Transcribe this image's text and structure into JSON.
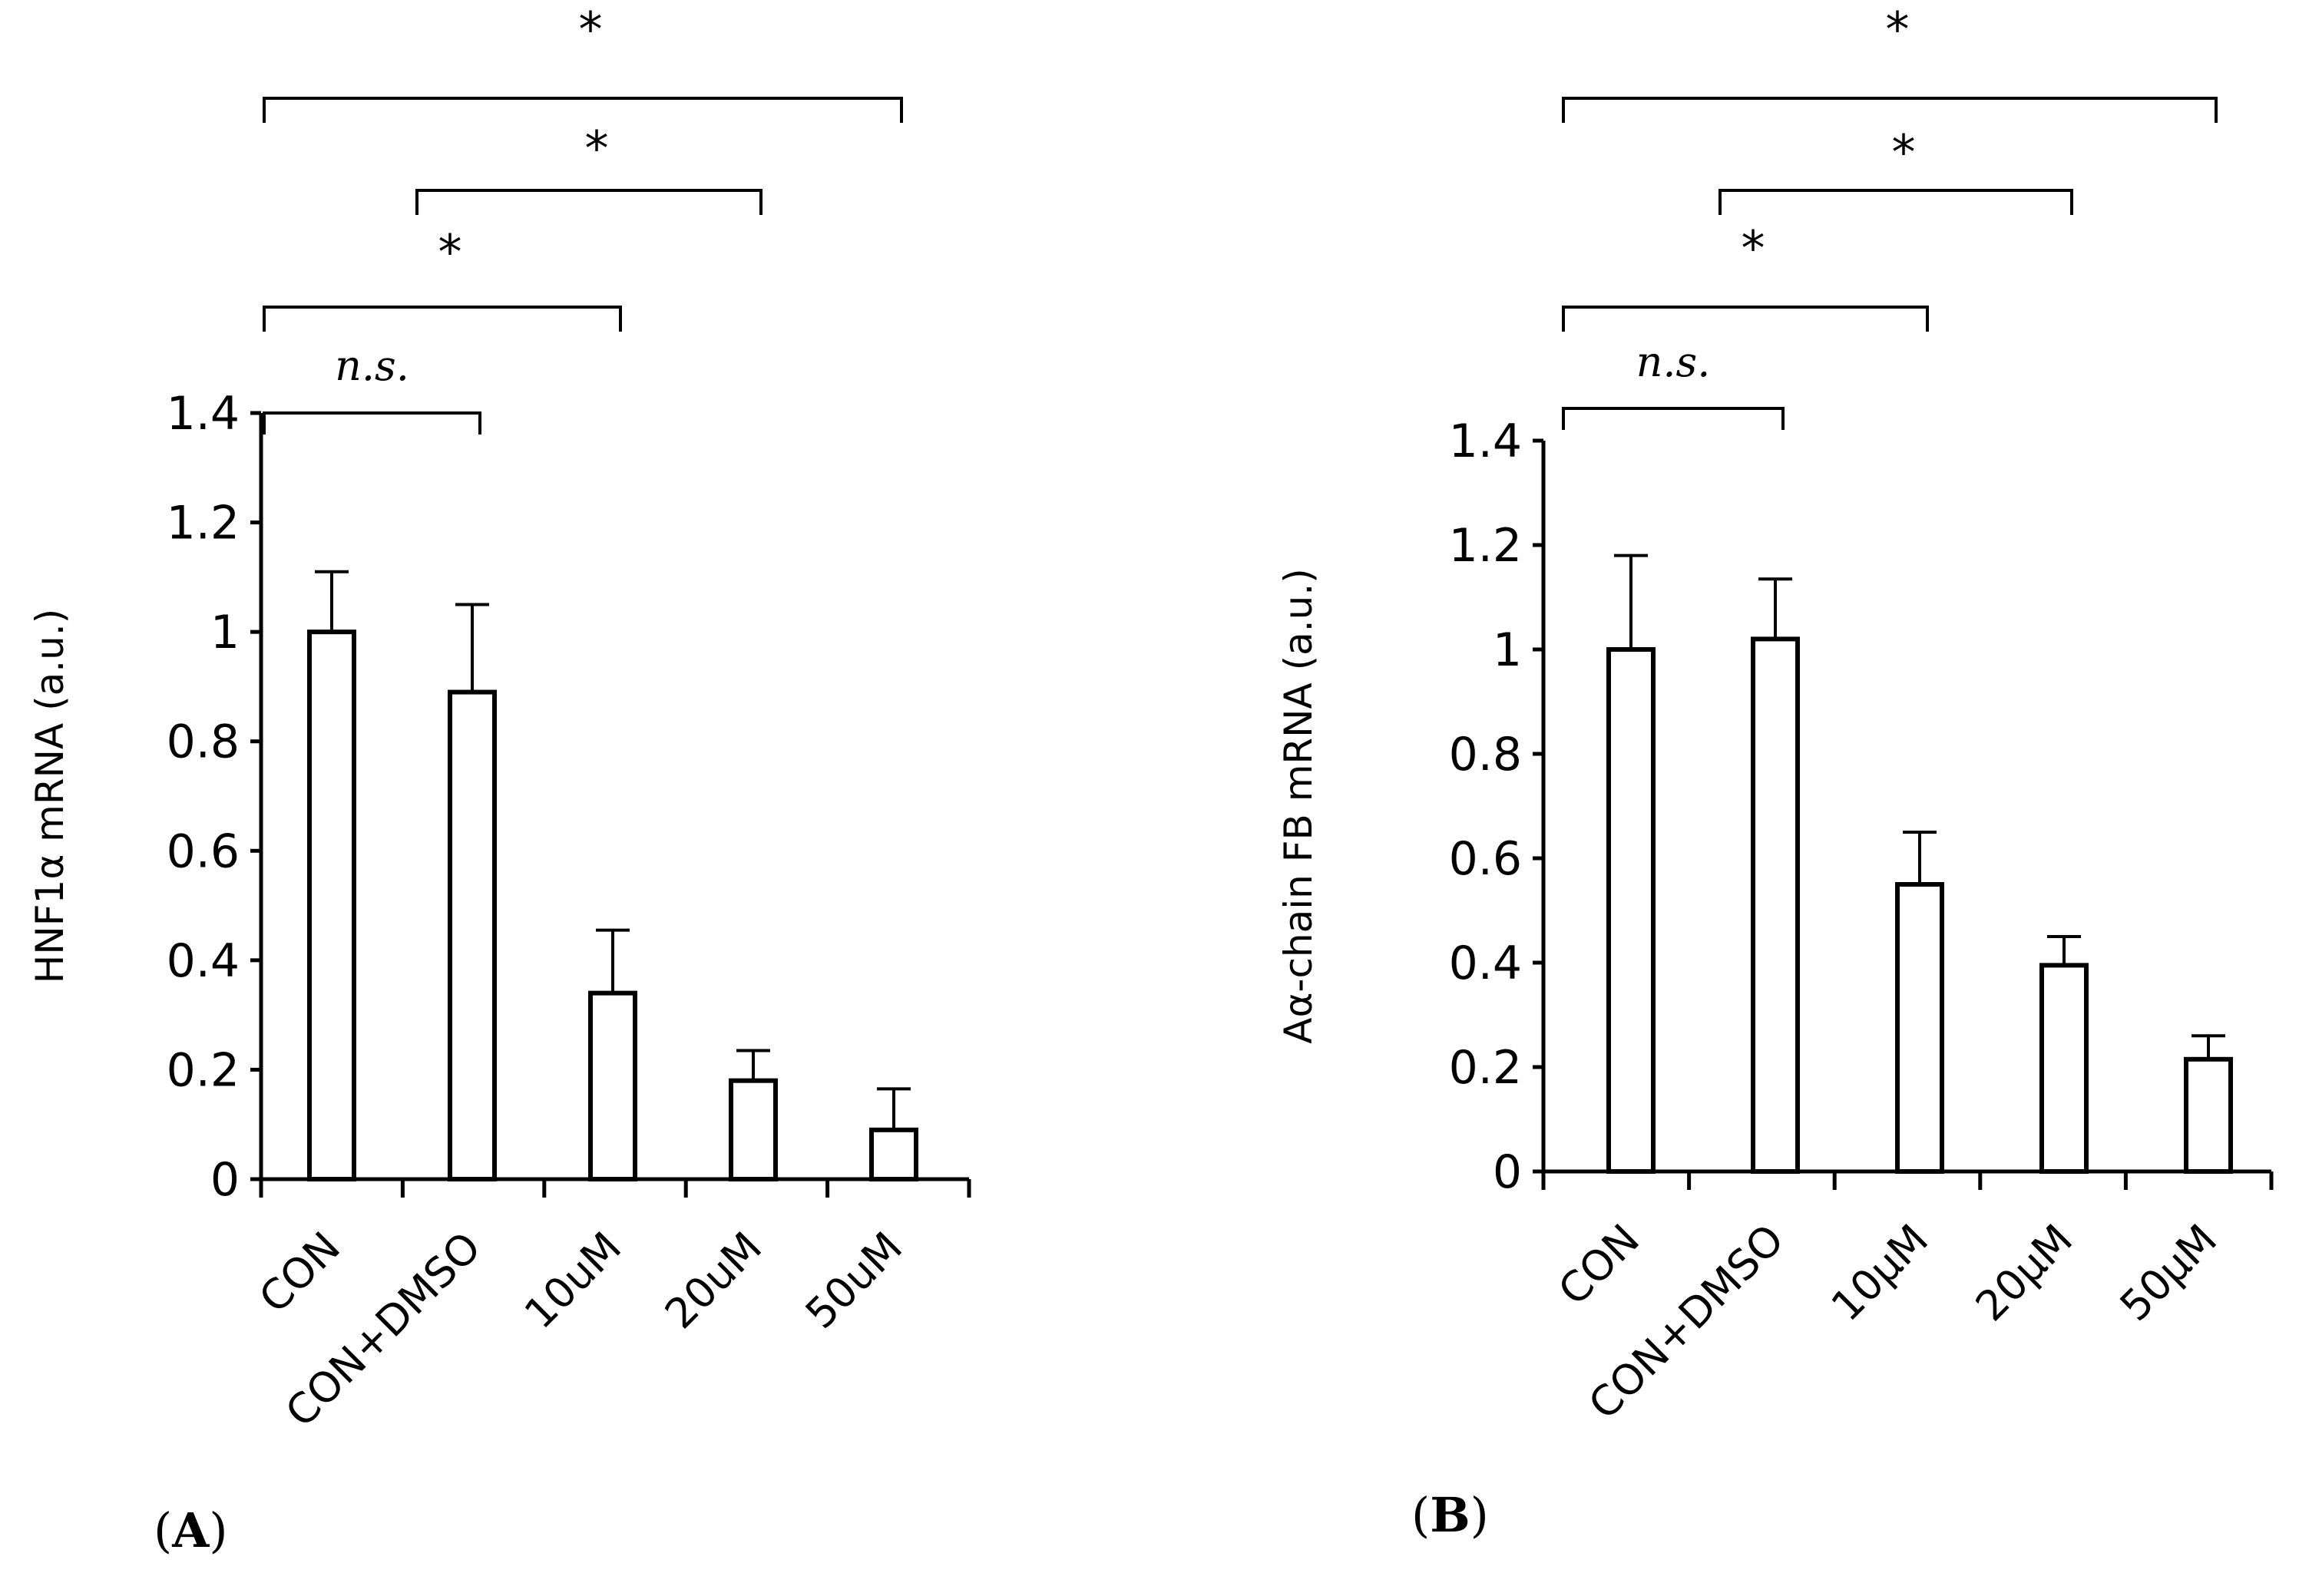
{
  "chart_data": [
    {
      "type": "bar",
      "panel_label": "A",
      "ylabel": "HNF1α mRNA (a.u.)",
      "xlabel": "",
      "categories": [
        "CON",
        "CON+DMSO",
        "10uM",
        "20uM",
        "50uM"
      ],
      "values": [
        1.0,
        0.89,
        0.34,
        0.18,
        0.09
      ],
      "errors": [
        0.11,
        0.16,
        0.115,
        0.055,
        0.075
      ],
      "ylim": [
        0,
        1.4
      ],
      "yticks": [
        "0",
        "0.2",
        "0.4",
        "0.6",
        "0.8",
        "1",
        "1.2",
        "1.4"
      ],
      "grid": false,
      "comparisons": [
        {
          "from": "CON",
          "to": "CON+DMSO",
          "label": "n.s."
        },
        {
          "from": "CON",
          "to": "10uM",
          "label": "*"
        },
        {
          "from": "CON+DMSO",
          "to": "20uM",
          "label": "*"
        },
        {
          "from": "CON",
          "to": "50uM",
          "label": "*"
        }
      ]
    },
    {
      "type": "bar",
      "panel_label": "B",
      "ylabel": "Aα-chain FB mRNA (a.u.)",
      "xlabel": "",
      "categories": [
        "CON",
        "CON+DMSO",
        "10μM",
        "20μM",
        "50μM"
      ],
      "values": [
        1.0,
        1.02,
        0.55,
        0.395,
        0.215
      ],
      "errors": [
        0.18,
        0.115,
        0.1,
        0.055,
        0.045
      ],
      "ylim": [
        0,
        1.4
      ],
      "yticks": [
        "0",
        "0.2",
        "0.4",
        "0.6",
        "0.8",
        "1",
        "1.2",
        "1.4"
      ],
      "grid": false,
      "comparisons": [
        {
          "from": "CON",
          "to": "CON+DMSO",
          "label": "n.s."
        },
        {
          "from": "CON",
          "to": "10μM",
          "label": "*"
        },
        {
          "from": "CON+DMSO",
          "to": "20μM",
          "label": "*"
        },
        {
          "from": "CON",
          "to": "50μM",
          "label": "*"
        }
      ]
    }
  ]
}
